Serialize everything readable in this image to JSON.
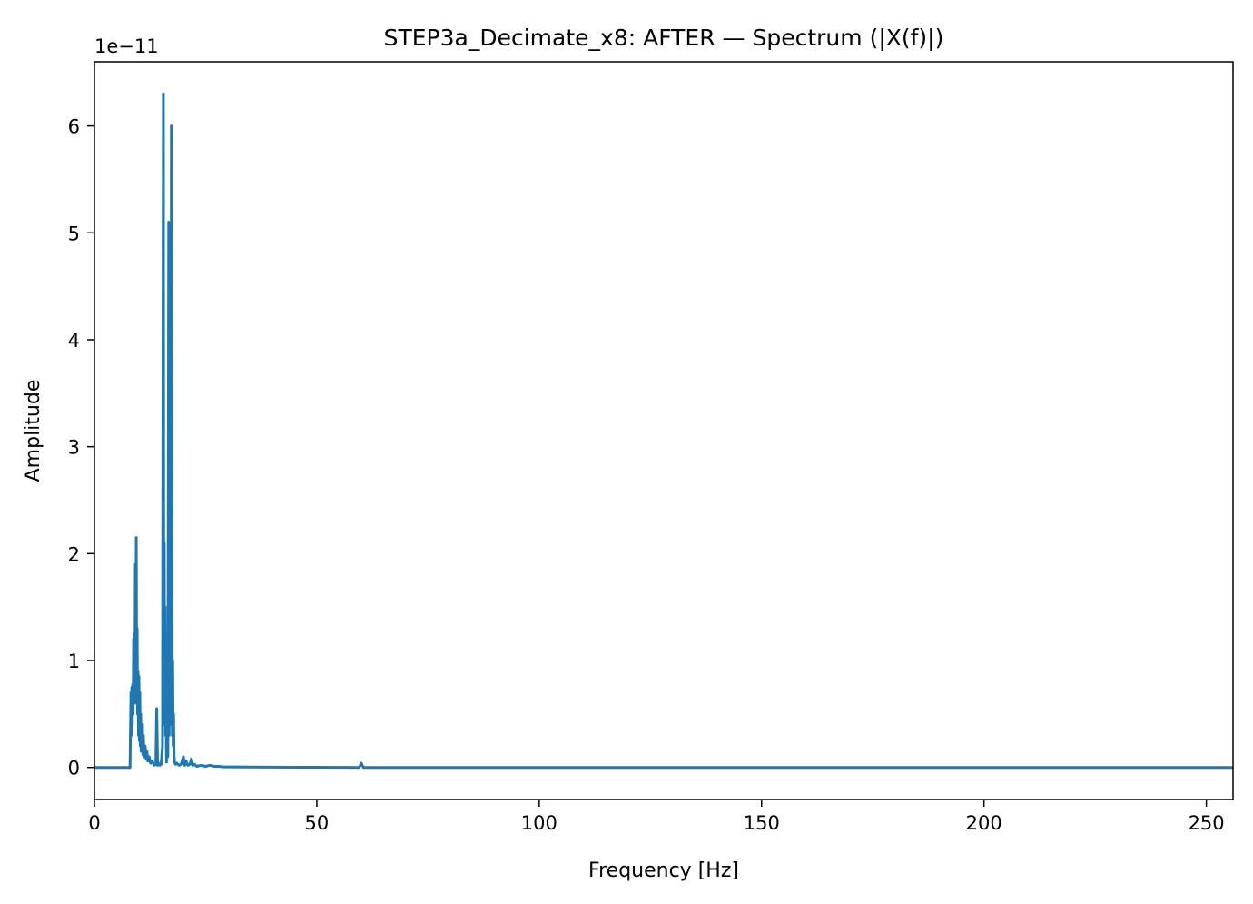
{
  "chart_data": {
    "type": "line",
    "title": "STEP3a_Decimate_x8: AFTER — Spectrum (|X(f)|)",
    "xlabel": "Frequency [Hz]",
    "ylabel": "Amplitude",
    "y_offset_label": "1e−11",
    "xlim": [
      0,
      256
    ],
    "ylim": [
      -0.3,
      6.6
    ],
    "x_ticks": [
      0,
      50,
      100,
      150,
      200,
      250
    ],
    "x_tick_labels": [
      "0",
      "50",
      "100",
      "150",
      "200",
      "250"
    ],
    "y_ticks": [
      0,
      1,
      2,
      3,
      4,
      5,
      6
    ],
    "y_tick_labels": [
      "0",
      "1",
      "2",
      "3",
      "4",
      "5",
      "6"
    ],
    "grid": false,
    "legend": "none",
    "line_color": "#1f77b4",
    "series": [
      {
        "x": [
          0,
          8.0,
          8.2,
          8.3,
          8.4,
          8.5,
          8.6,
          8.7,
          8.8,
          8.9,
          9.0,
          9.1,
          9.2,
          9.3,
          9.4,
          9.5,
          9.6,
          9.7,
          9.8,
          9.9,
          10.0,
          10.1,
          10.2,
          10.3,
          10.4,
          10.5,
          10.6,
          10.7,
          10.8,
          10.9,
          11.0,
          11.2,
          11.4,
          11.6,
          11.8,
          12.0,
          12.3,
          12.6,
          13.0,
          13.4,
          13.8,
          14.0,
          14.2,
          14.4,
          14.7,
          15.0,
          15.3,
          15.5,
          15.6,
          15.7,
          15.8,
          15.9,
          16.0,
          16.1,
          16.2,
          16.3,
          16.5,
          16.7,
          16.8,
          16.9,
          17.0,
          17.1,
          17.2,
          17.3,
          17.5,
          17.6,
          17.7,
          17.8,
          17.9,
          18.0,
          18.2,
          18.5,
          19.0,
          19.5,
          20.0,
          20.3,
          20.6,
          21.0,
          21.5,
          21.8,
          22.1,
          22.5,
          23.0,
          24.0,
          25.0,
          26.0,
          27.0,
          28.0,
          29.0,
          30.0,
          35.0,
          40.0,
          45.0,
          50.0,
          55.0,
          59.5,
          59.8,
          60.0,
          60.2,
          60.5,
          65.0,
          100.0,
          150.0,
          200.0,
          256.0
        ],
        "y": [
          0,
          0,
          0.7,
          0.3,
          0.75,
          0.4,
          0.78,
          0.5,
          1.2,
          0.6,
          1.25,
          0.7,
          1.9,
          0.8,
          2.15,
          0.6,
          1.3,
          0.5,
          0.9,
          0.3,
          0.85,
          0.25,
          0.7,
          0.2,
          0.5,
          0.15,
          0.3,
          0.2,
          0.4,
          0.12,
          0.3,
          0.1,
          0.2,
          0.08,
          0.15,
          0.06,
          0.1,
          0.04,
          0.06,
          0.02,
          0.03,
          0.55,
          0.02,
          0.04,
          0.02,
          0.03,
          0.2,
          6.3,
          0.5,
          2.1,
          0.4,
          1.5,
          0.3,
          0.6,
          0.05,
          0.3,
          0.1,
          5.1,
          0.3,
          1.9,
          0.4,
          2.1,
          0.5,
          6.0,
          0.3,
          1.0,
          0.2,
          0.5,
          0.1,
          0.05,
          0.03,
          0.04,
          0.02,
          0.03,
          0.1,
          0.02,
          0.06,
          0.02,
          0.03,
          0.08,
          0.02,
          0.03,
          0.01,
          0.02,
          0.01,
          0.02,
          0.01,
          0.01,
          0.005,
          0.005,
          0.004,
          0.003,
          0.002,
          0.002,
          0.001,
          0.0,
          0.02,
          0.04,
          0.02,
          0.0,
          0.0,
          0.0,
          0.0,
          0.0,
          0.0
        ]
      }
    ]
  }
}
